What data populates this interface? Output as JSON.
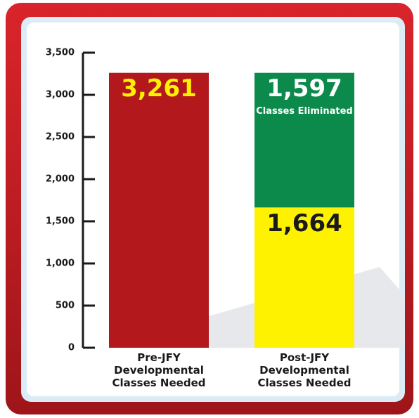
{
  "chart_data": {
    "type": "stacked_bar",
    "categories": [
      "Pre-JFY Developmental Classes Needed",
      "Post-JFY Developmental Classes Needed"
    ],
    "series": [
      {
        "values": [
          3261,
          1664
        ],
        "value_labels": [
          "3,261",
          "1,664"
        ],
        "colors": [
          "#b3181d",
          "#fff200"
        ],
        "label_colors": [
          "#fff200",
          "#1a1a1a"
        ]
      },
      {
        "name": "Classes Eliminated",
        "values": [
          null,
          1597
        ],
        "value_labels": [
          null,
          "1,597"
        ],
        "color": "#0b8a4b",
        "label_color": "#ffffff"
      }
    ],
    "ylim": [
      0,
      3500
    ],
    "yticks": [
      0,
      500,
      {
        "value": 1000,
        "label": "1,000"
      },
      {
        "value": 1500,
        "label": "1,500"
      },
      {
        "value": 2000,
        "label": "2,000"
      },
      {
        "value": 2500,
        "label": "2,500"
      },
      {
        "value": 3000,
        "label": "3,000"
      },
      {
        "value": 3500,
        "label": "3,500"
      }
    ]
  }
}
